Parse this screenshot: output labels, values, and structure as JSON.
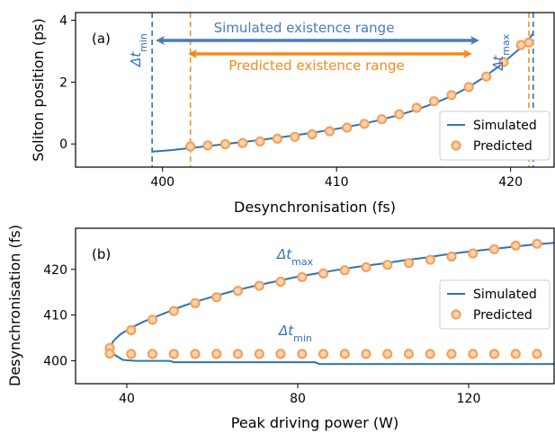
{
  "colors": {
    "simulated": "#2e74b5",
    "predicted": "#f28e2b",
    "simulated_arrow": "#4a7bb7",
    "predicted_arrow": "#f28a1e",
    "marker_edge": "#f5a05a"
  },
  "chart_data": [
    {
      "type": "line",
      "panel_label": "(a)",
      "xlabel": "Desynchronisation (fs)",
      "ylabel": "Soliton position (ps)",
      "xlim": [
        395,
        422.5
      ],
      "ylim": [
        -0.75,
        4.25
      ],
      "xticks": [
        "400",
        "410",
        "420"
      ],
      "yticks": [
        "0",
        "2",
        "4"
      ],
      "legend": {
        "position": "lower right",
        "entries": [
          "Simulated",
          "Predicted"
        ]
      },
      "annotations": {
        "simulated_range": "Simulated existence range",
        "predicted_range": "Predicted existence range",
        "dt_min_symbol": "Δt",
        "dt_min_sub": "min",
        "dt_max_symbol": "Δt",
        "dt_max_sub": "max"
      },
      "vlines": {
        "simulated_min": 399.4,
        "simulated_max": 421.3,
        "predicted_min": 401.6,
        "predicted_max": 421.05
      },
      "series": [
        {
          "name": "Simulated",
          "x": [
            399.4,
            400.5,
            401.6,
            402.6,
            403.6,
            404.6,
            405.6,
            406.6,
            407.6,
            408.6,
            409.6,
            410.6,
            411.6,
            412.6,
            413.6,
            414.6,
            415.6,
            416.6,
            417.6,
            418.5,
            419.4,
            420.1,
            420.6,
            421.0,
            421.3
          ],
          "y": [
            -0.25,
            -0.2,
            -0.13,
            -0.07,
            0.0,
            0.06,
            0.13,
            0.2,
            0.28,
            0.36,
            0.45,
            0.55,
            0.66,
            0.79,
            0.94,
            1.11,
            1.31,
            1.55,
            1.84,
            2.17,
            2.54,
            2.88,
            3.12,
            3.35,
            3.58
          ]
        },
        {
          "name": "Predicted",
          "x": [
            401.6,
            402.6,
            403.6,
            404.6,
            405.6,
            406.6,
            407.6,
            408.6,
            409.6,
            410.6,
            411.6,
            412.6,
            413.6,
            414.6,
            415.6,
            416.6,
            417.6,
            418.6,
            419.6,
            420.6,
            421.05
          ],
          "y": [
            -0.08,
            -0.05,
            -0.01,
            0.03,
            0.08,
            0.17,
            0.23,
            0.31,
            0.41,
            0.53,
            0.65,
            0.8,
            0.96,
            1.17,
            1.38,
            1.58,
            1.84,
            2.18,
            2.65,
            3.2,
            3.28
          ]
        }
      ]
    },
    {
      "type": "line",
      "panel_label": "(b)",
      "xlabel": "Peak driving power (W)",
      "ylabel": "Desynchronisation (fs)",
      "xlim": [
        28,
        140
      ],
      "ylim": [
        395,
        429
      ],
      "xticks": [
        "40",
        "80",
        "120"
      ],
      "yticks": [
        "400",
        "410",
        "420"
      ],
      "legend": {
        "position": "center right",
        "entries": [
          "Simulated",
          "Predicted"
        ]
      },
      "annotations": {
        "dt_max_symbol": "Δt",
        "dt_max_sub": "max",
        "dt_min_symbol": "Δt",
        "dt_min_sub": "min"
      },
      "series": [
        {
          "name": "Simulated (Δt_max)",
          "x": [
            36,
            37,
            38.5,
            41,
            44,
            48,
            52,
            56,
            60,
            65,
            70,
            75,
            80,
            85,
            90,
            95,
            100,
            105,
            110,
            115,
            120,
            125,
            130,
            135,
            140
          ],
          "y": [
            403,
            404.5,
            405.8,
            407.2,
            408.6,
            410.1,
            411.6,
            412.9,
            414.0,
            415.3,
            416.4,
            417.4,
            418.4,
            419.2,
            420.0,
            420.7,
            421.3,
            422.0,
            422.6,
            423.3,
            423.9,
            424.4,
            424.9,
            425.4,
            425.8
          ]
        },
        {
          "name": "Simulated (Δt_min)",
          "x": [
            36,
            37,
            39,
            42,
            50,
            51,
            60,
            70,
            84,
            85,
            100,
            120,
            140
          ],
          "y": [
            403,
            401.4,
            400.2,
            400.0,
            400.0,
            399.7,
            399.7,
            399.7,
            399.7,
            399.3,
            399.3,
            399.3,
            399.3
          ]
        },
        {
          "name": "Predicted (Δt_max)",
          "x": [
            36,
            41,
            46,
            51,
            56,
            61,
            66,
            71,
            76,
            81,
            86,
            91,
            96,
            101,
            106,
            111,
            116,
            121,
            126,
            131,
            136
          ],
          "y": [
            402.8,
            406.7,
            409.0,
            410.9,
            412.6,
            413.9,
            415.3,
            416.4,
            417.3,
            418.3,
            419.1,
            419.8,
            420.5,
            421.0,
            421.4,
            422.1,
            422.8,
            423.5,
            424.4,
            425.2,
            425.6
          ]
        },
        {
          "name": "Predicted (Δt_min)",
          "x": [
            36,
            41,
            46,
            51,
            56,
            61,
            66,
            71,
            76,
            81,
            86,
            91,
            96,
            101,
            106,
            111,
            116,
            121,
            126,
            131,
            136
          ],
          "y": [
            401.6,
            401.5,
            401.5,
            401.5,
            401.5,
            401.5,
            401.5,
            401.5,
            401.5,
            401.5,
            401.5,
            401.5,
            401.5,
            401.5,
            401.5,
            401.5,
            401.5,
            401.5,
            401.5,
            401.5,
            401.5
          ]
        }
      ]
    }
  ]
}
